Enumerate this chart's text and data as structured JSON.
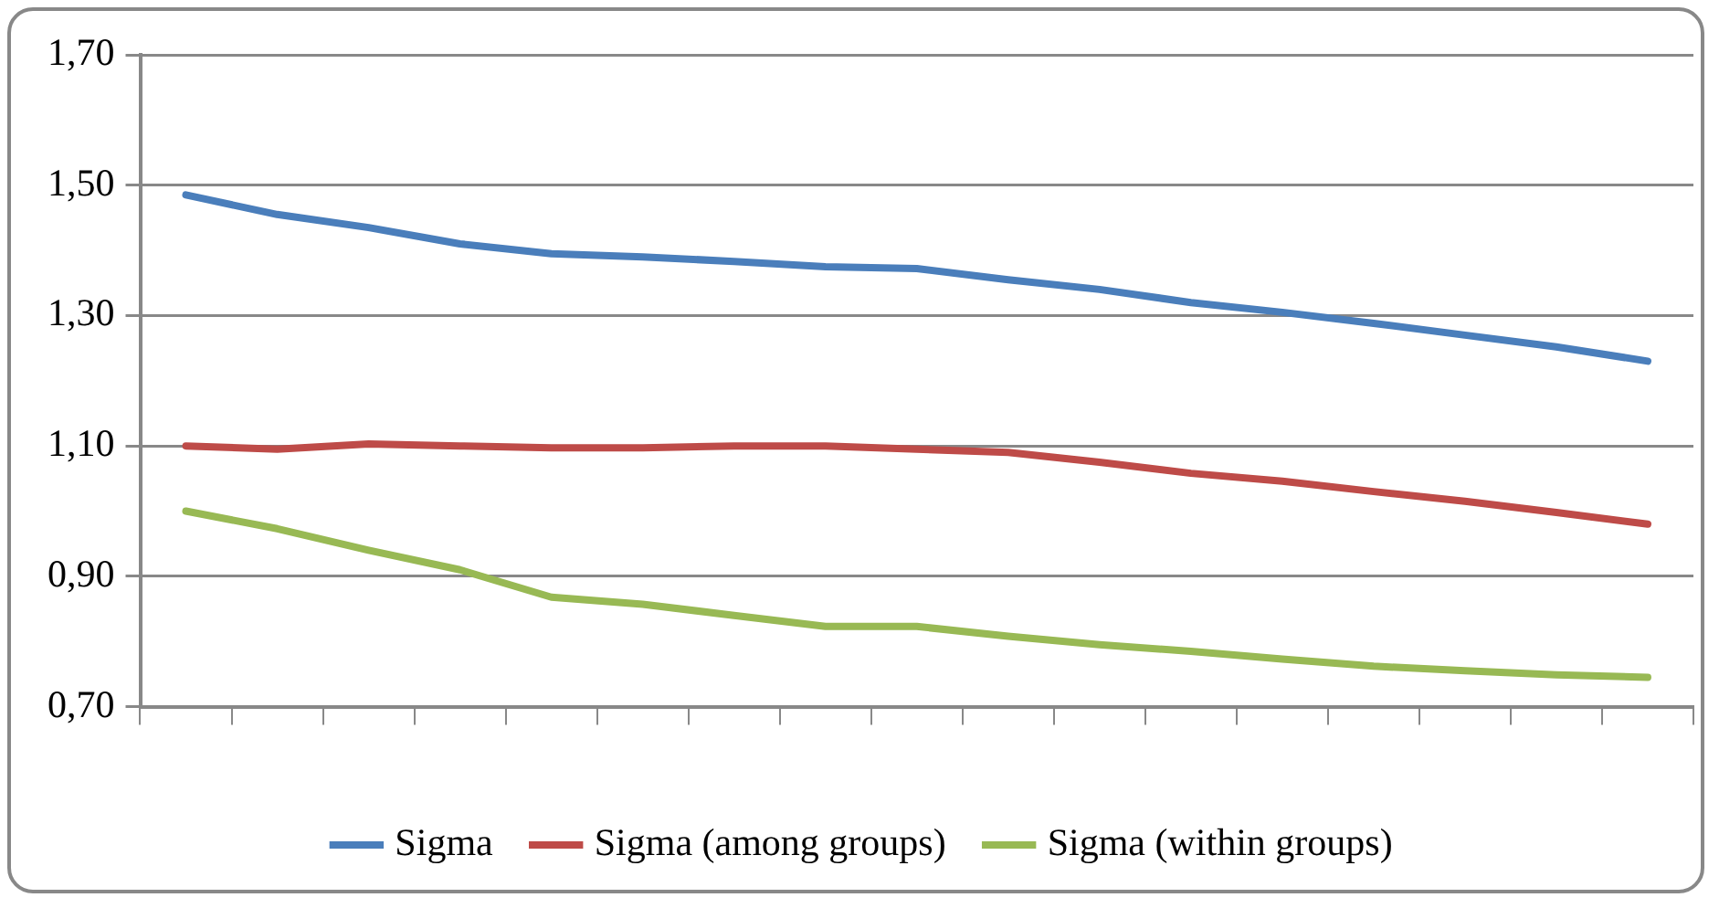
{
  "chart_data": {
    "type": "line",
    "categories": [
      null,
      null,
      null,
      null,
      null,
      null,
      null,
      null,
      null,
      null,
      null,
      null,
      null,
      null,
      null,
      null,
      null
    ],
    "series": [
      {
        "name": "Sigma",
        "color": "#4a7ebb",
        "values": [
          1.485,
          1.455,
          1.435,
          1.41,
          1.395,
          1.39,
          1.383,
          1.375,
          1.372,
          1.355,
          1.34,
          1.32,
          1.305,
          1.288,
          1.27,
          1.252,
          1.23
        ]
      },
      {
        "name": "Sigma (among groups)",
        "color": "#be4b48",
        "values": [
          1.1,
          1.095,
          1.103,
          1.1,
          1.097,
          1.097,
          1.1,
          1.1,
          1.095,
          1.09,
          1.075,
          1.058,
          1.046,
          1.03,
          1.015,
          0.998,
          0.98
        ]
      },
      {
        "name": "Sigma (within groups)",
        "color": "#98b954",
        "values": [
          1.0,
          0.973,
          0.94,
          0.91,
          0.868,
          0.857,
          0.84,
          0.823,
          0.823,
          0.808,
          0.795,
          0.785,
          0.773,
          0.762,
          0.755,
          0.749,
          0.745
        ]
      }
    ],
    "ylim": [
      0.7,
      1.7
    ],
    "yticks": [
      {
        "value": 0.7,
        "label": "0,70"
      },
      {
        "value": 0.9,
        "label": "0,90"
      },
      {
        "value": 1.1,
        "label": "1,10"
      },
      {
        "value": 1.3,
        "label": "1,30"
      },
      {
        "value": 1.5,
        "label": "1,50"
      },
      {
        "value": 1.7,
        "label": "1,70"
      }
    ],
    "grid": "y",
    "legend": "bottom",
    "marker": "none",
    "line_style": "solid"
  }
}
